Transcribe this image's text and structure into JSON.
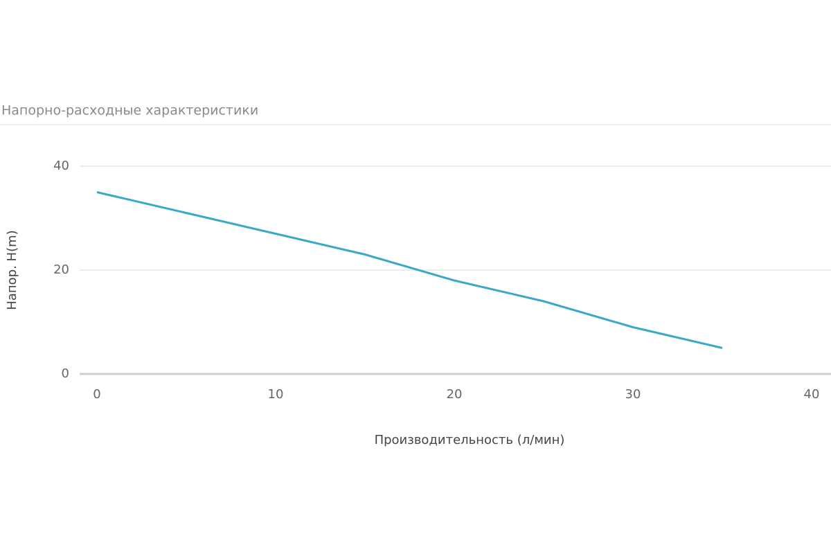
{
  "chart_data": {
    "type": "line",
    "title": "Напорно-расходные характеристики",
    "x_label": "Производительность (л/мин)",
    "y_label": "Напор. H(m)",
    "x": [
      0,
      5,
      10,
      15,
      20,
      25,
      30,
      35
    ],
    "series": [
      {
        "name": "H",
        "color": "#3aa9c6",
        "values": [
          35,
          31,
          27,
          23,
          18,
          14,
          9,
          5
        ]
      }
    ],
    "xlim": [
      0,
      40
    ],
    "xticks": [
      0,
      10,
      20,
      30,
      40
    ],
    "ylim": [
      0,
      40
    ],
    "yticks": [
      0,
      20,
      40
    ],
    "grid": true
  }
}
